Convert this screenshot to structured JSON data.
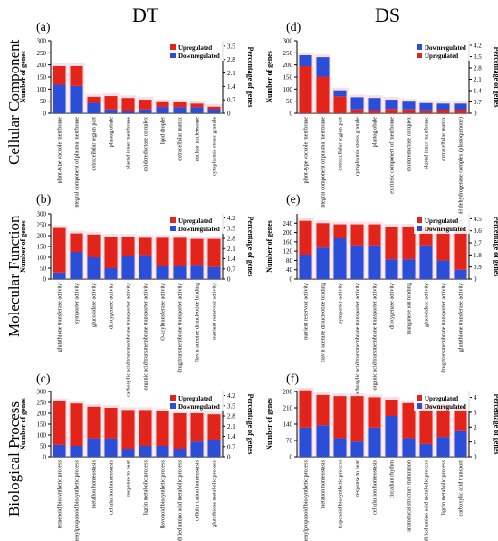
{
  "figure": {
    "col_titles": [
      "DT",
      "DS"
    ],
    "row_labels": [
      "Cellular Component",
      "Molecular Function",
      "Biological Process"
    ]
  },
  "colors": {
    "up": "#e3241b",
    "down": "#2a4ed8",
    "bg": "#f4c7cf"
  },
  "chart_data": [
    {
      "id": "a",
      "type": "bar",
      "panel_label": "(a)",
      "ylabel": "Number of genes",
      "y2label": "Percentage of genes",
      "ylim": [
        0,
        300
      ],
      "yticks": [
        0,
        50,
        100,
        150,
        200,
        250,
        300
      ],
      "y2ticks": [
        "0",
        "0.7",
        "1.4",
        "2.1",
        "2.8",
        "3.5"
      ],
      "legend": [
        "Upregulated",
        "Downregulated"
      ],
      "legend_position": "top-right",
      "categories": [
        "plant-type vacuole membrane",
        "integral component of plasma membrane",
        "extracellular region part",
        "plastoglobule",
        "plastid inner membrane",
        "oxidoreductase complex",
        "lipid droplet",
        "extracellular matrix",
        "nuclear nucleosome",
        "cytoplasmic stress granule"
      ],
      "series": [
        {
          "name": "Upregulated",
          "values": [
            77,
            82,
            25,
            55,
            55,
            40,
            20,
            20,
            15,
            10
          ]
        },
        {
          "name": "Downregulated",
          "values": [
            118,
            113,
            43,
            16,
            8,
            16,
            26,
            25,
            25,
            17
          ]
        }
      ]
    },
    {
      "id": "b",
      "type": "bar",
      "panel_label": "(b)",
      "ylabel": "Number of genes",
      "y2label": "Percentage of genes",
      "ylim": [
        0,
        300
      ],
      "yticks": [
        0,
        50,
        100,
        150,
        200,
        250,
        300
      ],
      "y2ticks": [
        "0",
        "0.7",
        "1.4",
        "2.1",
        "2.8",
        "3.5",
        "4.2"
      ],
      "legend": [
        "Upregulated",
        "Downregulated"
      ],
      "legend_position": "top-right",
      "categories": [
        "glutathione transferase activity",
        "symporter activity",
        "glucosidase activity",
        "dioxygenase activity",
        "carboxylic acid transmembrane transporter activity",
        "organic acid transmembrane transporter activity",
        "O-acyltransferase activity",
        "drug transmembrane transporter activity",
        "flavin adenine dinucleotide binding",
        "nutrient reservoir activity"
      ],
      "series": [
        {
          "name": "Upregulated",
          "values": [
            205,
            85,
            105,
            145,
            90,
            80,
            130,
            130,
            120,
            130
          ]
        },
        {
          "name": "Downregulated",
          "values": [
            30,
            125,
            100,
            50,
            105,
            110,
            60,
            60,
            65,
            55
          ]
        }
      ]
    },
    {
      "id": "c",
      "type": "bar",
      "panel_label": "(c)",
      "ylabel": "Number of genes",
      "y2label": "Percentage of genes",
      "ylim": [
        0,
        300
      ],
      "yticks": [
        0,
        50,
        100,
        150,
        200,
        250,
        300
      ],
      "y2ticks": [
        "0",
        "0.7",
        "1.4",
        "2.1",
        "2.8",
        "3.5",
        "4.2"
      ],
      "legend": [
        "Upregulated",
        "Downregulated"
      ],
      "legend_position": "top-right",
      "categories": [
        "terpenoid biosynthetic process",
        "phenylpropanoid biosynthetic process",
        "metallon homeostasis",
        "cellular ion homeostasis",
        "response to heat",
        "lignin metabolic process",
        "flavonoid biosynthetic process",
        "cellular modified amino acid metabolic process",
        "cellular cation homeostasis",
        "glutathione metabolic process"
      ],
      "series": [
        {
          "name": "Upregulated",
          "values": [
            200,
            195,
            145,
            140,
            180,
            165,
            160,
            165,
            130,
            120
          ]
        },
        {
          "name": "Downregulated",
          "values": [
            55,
            50,
            85,
            85,
            35,
            50,
            50,
            35,
            70,
            75
          ]
        }
      ]
    },
    {
      "id": "d",
      "type": "bar",
      "panel_label": "(d)",
      "ylabel": "Number of genes",
      "y2label": "Percentage of genes",
      "ylim": [
        0,
        300
      ],
      "yticks": [
        0,
        50,
        100,
        150,
        200,
        250,
        300
      ],
      "y2ticks": [
        "0",
        "0.7",
        "1.4",
        "2.1",
        "2.8",
        "3.5",
        "4.2"
      ],
      "legend": [
        "Downregulated",
        "Upregulated"
      ],
      "legend_position": "top-right",
      "categories": [
        "plant-type vacuole membrane",
        "integral component of plasma membrane",
        "extracellular region part",
        "cytoplasmic stress granule",
        "plastoglobule",
        "extrinsic component of membrane",
        "oxidoreductase complex",
        "plastid inner membrane",
        "extracellular matrix",
        "NAD(P)H dehydrogenase complex (plastoquinone)"
      ],
      "series": [
        {
          "name": "Downregulated",
          "values": [
            45,
            80,
            25,
            50,
            50,
            38,
            32,
            30,
            25,
            25
          ]
        },
        {
          "name": "Upregulated",
          "values": [
            195,
            152,
            70,
            16,
            13,
            18,
            16,
            12,
            15,
            15
          ]
        }
      ]
    },
    {
      "id": "e",
      "type": "bar",
      "panel_label": "(e)",
      "ylabel": "Number of genes",
      "y2label": "Percentage of genes",
      "ylim": [
        0,
        280
      ],
      "yticks": [
        0,
        40,
        80,
        120,
        160,
        200,
        240
      ],
      "y2ticks": [
        "0",
        "0.9",
        "1.8",
        "2.7",
        "3.6",
        "4.5"
      ],
      "legend": [
        "Upregulated",
        "Downregulated"
      ],
      "legend_position": "top-right",
      "categories": [
        "nutrient reservoir activity",
        "flavin adenine dinucleotide binding",
        "symporter activity",
        "carboxylic acid transmembrane transporter activity",
        "organic acid transmembrane transporter activity",
        "dioxygenase activity",
        "manganese ion binding",
        "glucosidase activity",
        "drug transmembrane transporter activity",
        "glutathione transferase activity"
      ],
      "series": [
        {
          "name": "Upregulated",
          "values": [
            145,
            105,
            60,
            90,
            90,
            140,
            140,
            75,
            135,
            170
          ]
        },
        {
          "name": "Downregulated",
          "values": [
            105,
            135,
            175,
            145,
            145,
            85,
            85,
            145,
            80,
            40
          ]
        }
      ]
    },
    {
      "id": "f",
      "type": "bar",
      "panel_label": "(f)",
      "ylabel": "Number of genes",
      "y2label": "Percentage of genes",
      "ylim": [
        0,
        280
      ],
      "yticks": [
        0,
        70,
        140,
        210,
        280
      ],
      "y2ticks": [
        "0",
        "1",
        "2",
        "3",
        "4"
      ],
      "legend": [
        "Upregulated",
        "Downregulated"
      ],
      "legend_position": "top-right",
      "categories": [
        "phenylpropanoid biosynthetic process",
        "metallon homeostasis",
        "terpenoid biosynthetic process",
        "response to heat",
        "cellular ion homeostasis",
        "circadian rhythm",
        "anatomical structure maturation",
        "cellular modified amino acid metabolic process",
        "lignin metabolic process",
        "carboxylic acid transport"
      ],
      "series": [
        {
          "name": "Upregulated",
          "values": [
            160,
            130,
            180,
            195,
            130,
            70,
            150,
            170,
            140,
            110
          ]
        },
        {
          "name": "Downregulated",
          "values": [
            125,
            135,
            80,
            65,
            125,
            175,
            80,
            55,
            85,
            110
          ]
        }
      ]
    }
  ]
}
